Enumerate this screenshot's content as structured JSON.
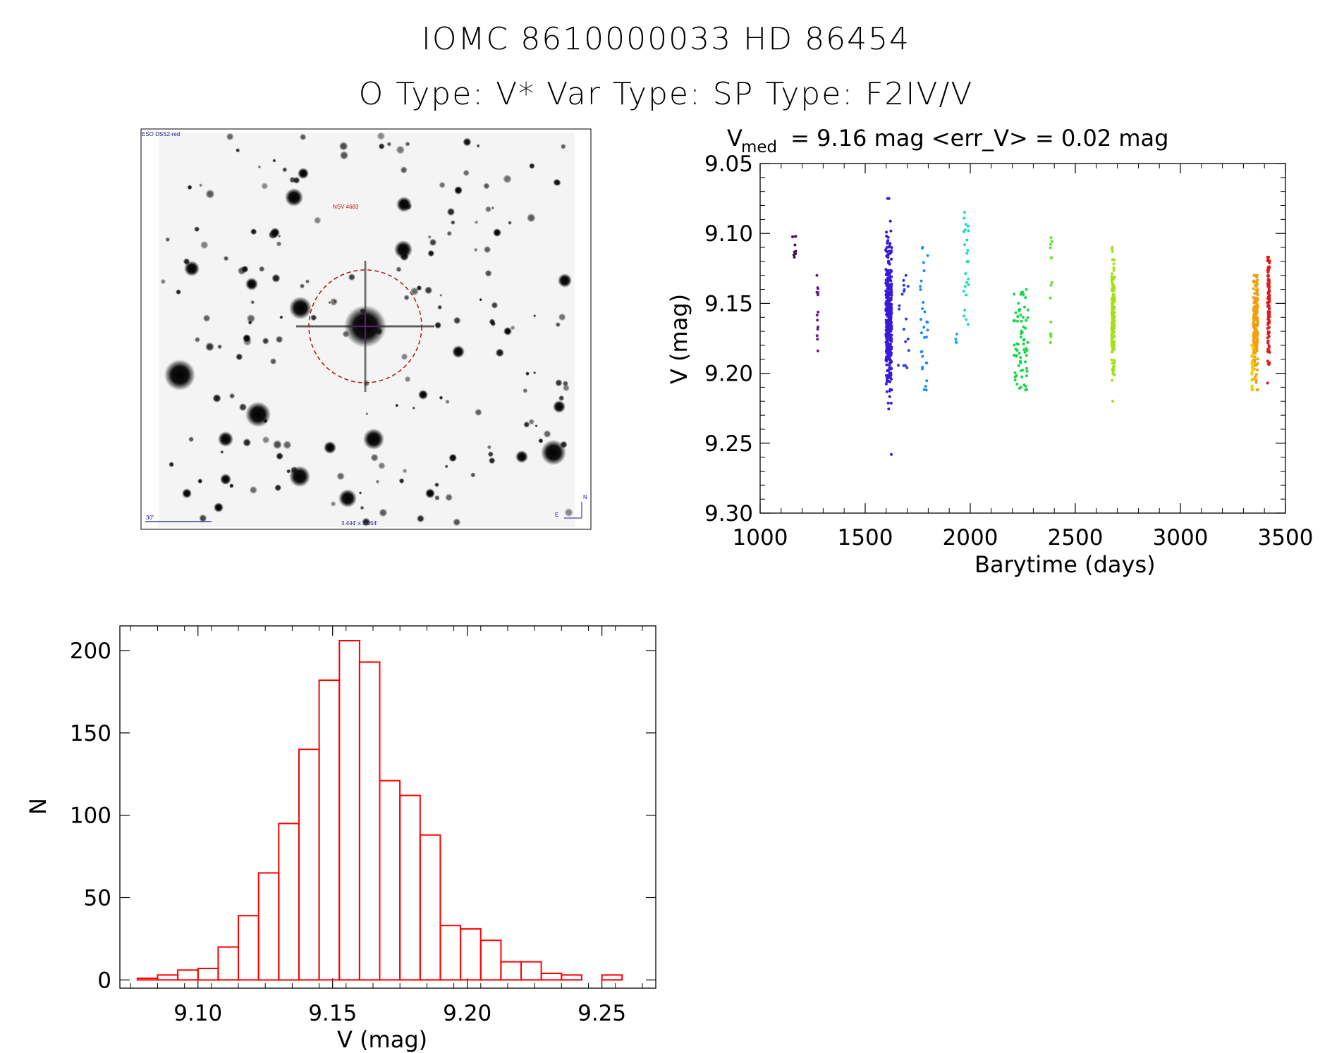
{
  "header": {
    "line1": "IOMC 8610000033    HD  86454",
    "line2": "O Type: V*  Var Type:     SP Type: F2IV/V"
  },
  "image_panel": {
    "survey_label": "ESO DSS2-red",
    "target_label": "NSV 4683",
    "scale_label": "30\"",
    "fov_label": "3.444' x 3.054'",
    "compass_n": "N",
    "compass_e": "E"
  },
  "chart_data": [
    {
      "id": "lightcurve",
      "type": "scatter",
      "title_main": "V",
      "title_sub": "med",
      "title_rest": " = 9.16 mag <err_V> = 0.02 mag",
      "xlabel": "Barytime (days)",
      "ylabel": "V (mag)",
      "xlim": [
        1000,
        3500
      ],
      "ylim": [
        9.3,
        9.05
      ],
      "xticks": [
        "1000",
        "1500",
        "2000",
        "2500",
        "3000",
        "3500"
      ],
      "yticks": [
        "9.05",
        "9.10",
        "9.15",
        "9.20",
        "9.25",
        "9.30"
      ],
      "groups": [
        {
          "x": 1160,
          "xspread": 20,
          "y0": 9.102,
          "y1": 9.117,
          "n": 10,
          "color": "#4a0f5a"
        },
        {
          "x": 1275,
          "xspread": 10,
          "y0": 9.13,
          "y1": 9.184,
          "n": 14,
          "color": "#6a1a88"
        },
        {
          "x": 1612,
          "xspread": 28,
          "y0": 9.075,
          "y1": 9.258,
          "n": 380,
          "color": "#3a1ad8",
          "yc": 9.16,
          "ysd": 0.028
        },
        {
          "x": 1680,
          "xspread": 55,
          "y0": 9.13,
          "y1": 9.196,
          "n": 18,
          "color": "#2a3ce0"
        },
        {
          "x": 1780,
          "xspread": 35,
          "y0": 9.11,
          "y1": 9.212,
          "n": 30,
          "color": "#1a8cff"
        },
        {
          "x": 1935,
          "xspread": 10,
          "y0": 9.172,
          "y1": 9.178,
          "n": 4,
          "color": "#14b4dc"
        },
        {
          "x": 1980,
          "xspread": 25,
          "y0": 9.085,
          "y1": 9.165,
          "n": 24,
          "color": "#14e0c0"
        },
        {
          "x": 2240,
          "xspread": 70,
          "y0": 9.14,
          "y1": 9.212,
          "n": 70,
          "color": "#14d84a"
        },
        {
          "x": 2385,
          "xspread": 8,
          "y0": 9.103,
          "y1": 9.178,
          "n": 14,
          "color": "#5ae62a"
        },
        {
          "x": 2680,
          "xspread": 14,
          "y0": 9.11,
          "y1": 9.22,
          "n": 170,
          "color": "#a6e014",
          "yc": 9.16,
          "ysd": 0.02
        },
        {
          "x": 3358,
          "xspread": 22,
          "y0": 9.13,
          "y1": 9.212,
          "n": 200,
          "color": "#f0a010",
          "yc": 9.165,
          "ysd": 0.018
        },
        {
          "x": 3342,
          "xspread": 10,
          "y0": 9.18,
          "y1": 9.212,
          "n": 25,
          "color": "#f0d000"
        },
        {
          "x": 3420,
          "xspread": 10,
          "y0": 9.117,
          "y1": 9.207,
          "n": 110,
          "color": "#e01a1a",
          "yc": 9.155,
          "ysd": 0.02
        }
      ]
    },
    {
      "id": "histogram",
      "type": "bar",
      "xlabel": "V (mag)",
      "ylabel": "N",
      "xlim": [
        9.071,
        9.27
      ],
      "ylim": [
        -5,
        215
      ],
      "xticks": [
        "9.10",
        "9.15",
        "9.20",
        "9.25"
      ],
      "yticks": [
        "0",
        "50",
        "100",
        "150",
        "200"
      ],
      "bin_width": 0.0075,
      "bin_start": 9.0775,
      "values": [
        1,
        3,
        6,
        7,
        20,
        39,
        65,
        95,
        140,
        182,
        206,
        193,
        121,
        112,
        88,
        33,
        31,
        24,
        11,
        11,
        4,
        3,
        0,
        3
      ],
      "color": "#ff0000"
    }
  ]
}
